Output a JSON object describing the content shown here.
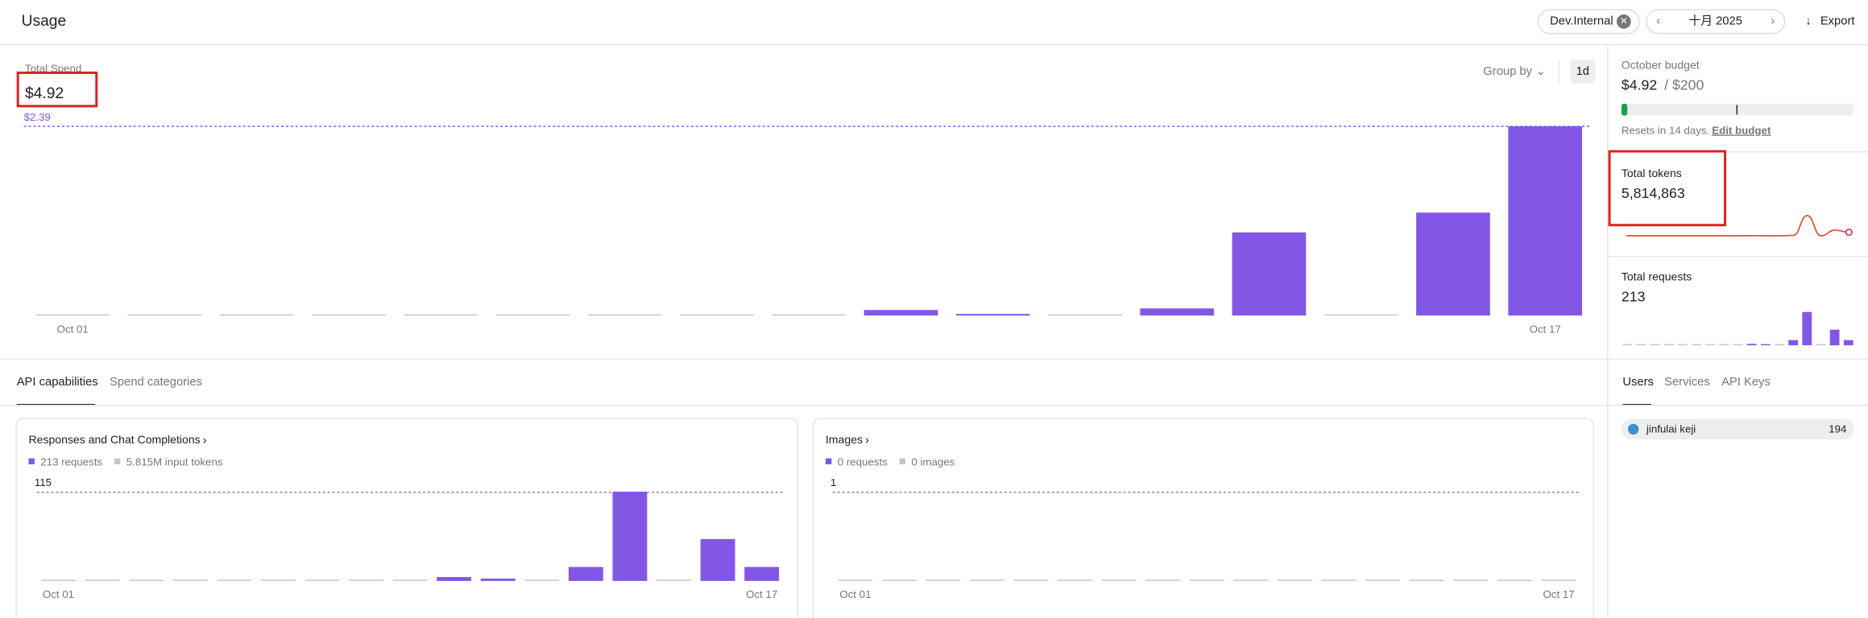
{
  "header": {
    "title": "Usage",
    "project": "Dev.Internal",
    "month": "十月 2025",
    "export": "Export"
  },
  "spend": {
    "type": "bar",
    "label": "Total Spend",
    "total": "$4.92",
    "group_by": "Group by",
    "interval": "1d",
    "ref_line": {
      "value": 2.39,
      "label": "$2.39"
    },
    "color": "#8257e5",
    "categories": [
      "Oct 01",
      null,
      null,
      null,
      null,
      null,
      null,
      null,
      null,
      null,
      null,
      null,
      null,
      null,
      null,
      null,
      "Oct 17"
    ],
    "values": [
      0,
      0,
      0,
      0,
      0,
      0,
      0,
      0,
      0,
      0.07,
      0.02,
      0,
      0.09,
      1.05,
      0,
      1.3,
      2.39
    ]
  },
  "budget": {
    "title": "October budget",
    "spent": "$4.92",
    "limit": "/ $200",
    "resets": "Resets in 14 days.",
    "edit": "Edit budget"
  },
  "tokens": {
    "label": "Total tokens",
    "total": "5,814,863",
    "values": [
      0,
      0,
      0,
      0,
      0,
      0,
      0,
      0,
      0,
      30000,
      10000,
      0,
      80000,
      3900000,
      0,
      1100000,
      690000
    ]
  },
  "requests": {
    "label": "Total requests",
    "total": "213"
  },
  "tabs": [
    "API capabilities",
    "Spend categories"
  ],
  "side_tabs": [
    "Users",
    "Services",
    "API Keys"
  ],
  "users": [
    {
      "name": "jinfulai keji",
      "value": "194"
    }
  ],
  "capabilities": [
    {
      "title": "Responses and Chat Completions",
      "legend": [
        "213 requests",
        "5.815M input tokens"
      ],
      "ref_line": {
        "value": 115,
        "label": "115"
      },
      "categories": [
        "Oct 01",
        null,
        null,
        null,
        null,
        null,
        null,
        null,
        null,
        null,
        null,
        null,
        null,
        null,
        null,
        null,
        "Oct 17"
      ],
      "values": [
        0,
        0,
        0,
        0,
        0,
        0,
        0,
        0,
        0,
        5,
        3,
        0,
        18,
        115,
        0,
        54,
        18
      ]
    },
    {
      "title": "Images",
      "legend": [
        "0 requests",
        "0 images"
      ],
      "ref_line": {
        "value": 1,
        "label": "1"
      },
      "categories": [
        "Oct 01",
        null,
        null,
        null,
        null,
        null,
        null,
        null,
        null,
        null,
        null,
        null,
        null,
        null,
        null,
        null,
        "Oct 17"
      ],
      "values": [
        0,
        0,
        0,
        0,
        0,
        0,
        0,
        0,
        0,
        0,
        0,
        0,
        0,
        0,
        0,
        0,
        0
      ]
    }
  ]
}
